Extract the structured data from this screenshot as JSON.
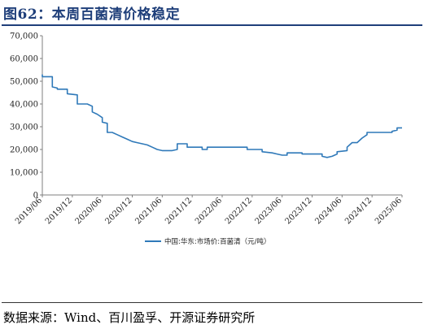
{
  "title": "图62：本周百菌清价格稳定",
  "source": "数据来源：Wind、百川盈孚、开源证券研究所",
  "colors": {
    "title": "#1f3f7a",
    "line": "#2f79b9",
    "axis": "#7f7f7f"
  },
  "chart_data": {
    "type": "line",
    "title": "",
    "xlabel": "",
    "ylabel": "",
    "ylim": [
      0,
      70000
    ],
    "y_ticks": [
      "0",
      "10,000",
      "20,000",
      "30,000",
      "40,000",
      "50,000",
      "60,000",
      "70,000"
    ],
    "x_ticks": [
      "2019/06",
      "2019/12",
      "2020/06",
      "2020/12",
      "2021/06",
      "2021/12",
      "2022/06",
      "2022/12",
      "2023/06",
      "2023/12",
      "2024/06",
      "2024/12",
      "2025/06"
    ],
    "grid": false,
    "legend_position": "bottom",
    "series": [
      {
        "name": "中国:华东:市场价:百菌清（元/吨）",
        "points": [
          [
            "2019/06",
            53000
          ],
          [
            "2019/06",
            52000
          ],
          [
            "2019/08",
            52000
          ],
          [
            "2019/08",
            47500
          ],
          [
            "2019/09",
            47000
          ],
          [
            "2019/09",
            46500
          ],
          [
            "2019/11",
            46500
          ],
          [
            "2019/11",
            44500
          ],
          [
            "2020/01",
            44000
          ],
          [
            "2020/01",
            40000
          ],
          [
            "2020/03",
            40000
          ],
          [
            "2020/04",
            39000
          ],
          [
            "2020/04",
            36500
          ],
          [
            "2020/05",
            35500
          ],
          [
            "2020/06",
            34000
          ],
          [
            "2020/06",
            32000
          ],
          [
            "2020/07",
            31500
          ],
          [
            "2020/07",
            27500
          ],
          [
            "2020/08",
            27500
          ],
          [
            "2020/09",
            26500
          ],
          [
            "2020/10",
            25500
          ],
          [
            "2020/11",
            24500
          ],
          [
            "2020/12",
            23500
          ],
          [
            "2021/01",
            23000
          ],
          [
            "2021/02",
            22500
          ],
          [
            "2021/03",
            22000
          ],
          [
            "2021/04",
            21000
          ],
          [
            "2021/05",
            20000
          ],
          [
            "2021/06",
            19500
          ],
          [
            "2021/07",
            19500
          ],
          [
            "2021/08",
            19500
          ],
          [
            "2021/09",
            20000
          ],
          [
            "2021/09",
            22500
          ],
          [
            "2021/11",
            22500
          ],
          [
            "2021/11",
            21000
          ],
          [
            "2022/02",
            21000
          ],
          [
            "2022/02",
            20000
          ],
          [
            "2022/03",
            20000
          ],
          [
            "2022/03",
            21000
          ],
          [
            "2022/11",
            21000
          ],
          [
            "2022/11",
            20000
          ],
          [
            "2023/02",
            20000
          ],
          [
            "2023/02",
            19000
          ],
          [
            "2023/04",
            18500
          ],
          [
            "2023/05",
            18000
          ],
          [
            "2023/06",
            17500
          ],
          [
            "2023/07",
            17500
          ],
          [
            "2023/07",
            18500
          ],
          [
            "2023/10",
            18500
          ],
          [
            "2023/10",
            18000
          ],
          [
            "2024/02",
            18000
          ],
          [
            "2024/02",
            17000
          ],
          [
            "2024/03",
            16500
          ],
          [
            "2024/04",
            17000
          ],
          [
            "2024/05",
            18000
          ],
          [
            "2024/05",
            19000
          ],
          [
            "2024/07",
            19500
          ],
          [
            "2024/07",
            21000
          ],
          [
            "2024/08",
            23000
          ],
          [
            "2024/09",
            23000
          ],
          [
            "2024/10",
            25000
          ],
          [
            "2024/11",
            26500
          ],
          [
            "2024/11",
            27500
          ],
          [
            "2025/04",
            27500
          ],
          [
            "2025/04",
            28000
          ],
          [
            "2025/05",
            28500
          ],
          [
            "2025/05",
            29500
          ],
          [
            "2025/06",
            29500
          ]
        ]
      }
    ]
  }
}
